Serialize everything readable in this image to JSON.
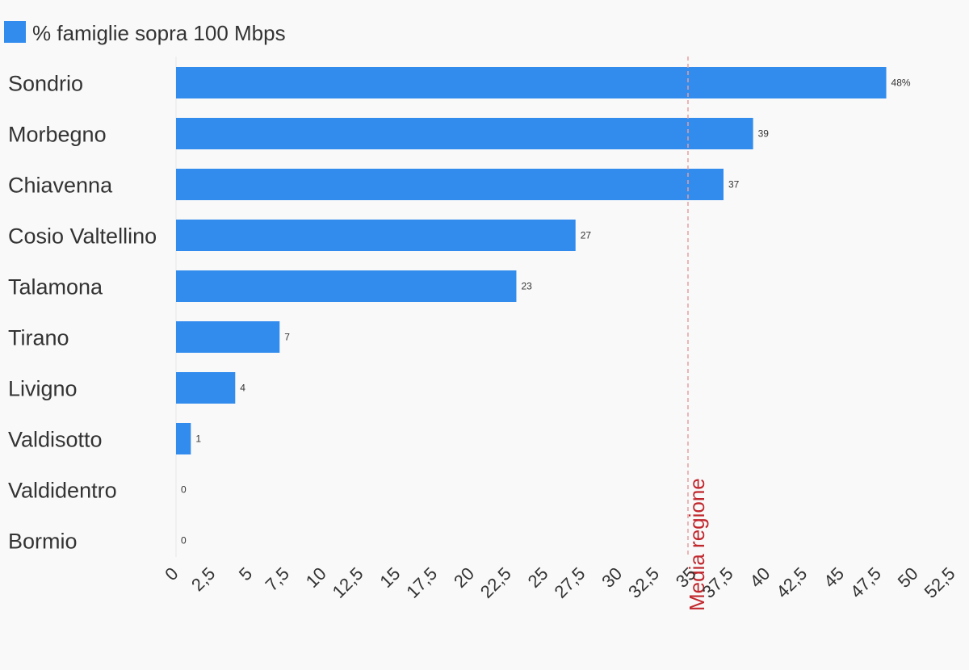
{
  "chart_data": {
    "type": "bar",
    "orientation": "horizontal",
    "categories": [
      "Sondrio",
      "Morbegno",
      "Chiavenna",
      "Cosio Valtellino",
      "Talamona",
      "Tirano",
      "Livigno",
      "Valdisotto",
      "Valdidentro",
      "Bormio"
    ],
    "series": [
      {
        "name": "% famiglie sopra 100 Mbps",
        "values": [
          48,
          39,
          37,
          27,
          23,
          7,
          4,
          1,
          0,
          0
        ],
        "data_labels": [
          "48%",
          "39",
          "37",
          "27",
          "23",
          "7",
          "4",
          "1",
          "0",
          "0"
        ],
        "color": "#318cee"
      }
    ],
    "xlim": [
      0,
      52.5
    ],
    "x_ticks": [
      0,
      2.5,
      5,
      7.5,
      10,
      12.5,
      15,
      17.5,
      20,
      22.5,
      25,
      27.5,
      30,
      32.5,
      35,
      37.5,
      40,
      42.5,
      45,
      47.5,
      50,
      52.5
    ],
    "x_tick_labels": [
      "0",
      "2,5",
      "5",
      "7,5",
      "10",
      "12,5",
      "15",
      "17,5",
      "20",
      "22,5",
      "25",
      "27,5",
      "30",
      "32,5",
      "35",
      "37,5",
      "40",
      "42,5",
      "45",
      "47,5",
      "50",
      "52,5"
    ],
    "grid": false,
    "legend_position": "top-left",
    "reference_line": {
      "value": 34.6,
      "label": "Media regione",
      "color": "#e8a0a0",
      "label_color": "#c0272d",
      "style": "dashed"
    },
    "background": "#f9f9f9",
    "text_color": "#333333"
  }
}
